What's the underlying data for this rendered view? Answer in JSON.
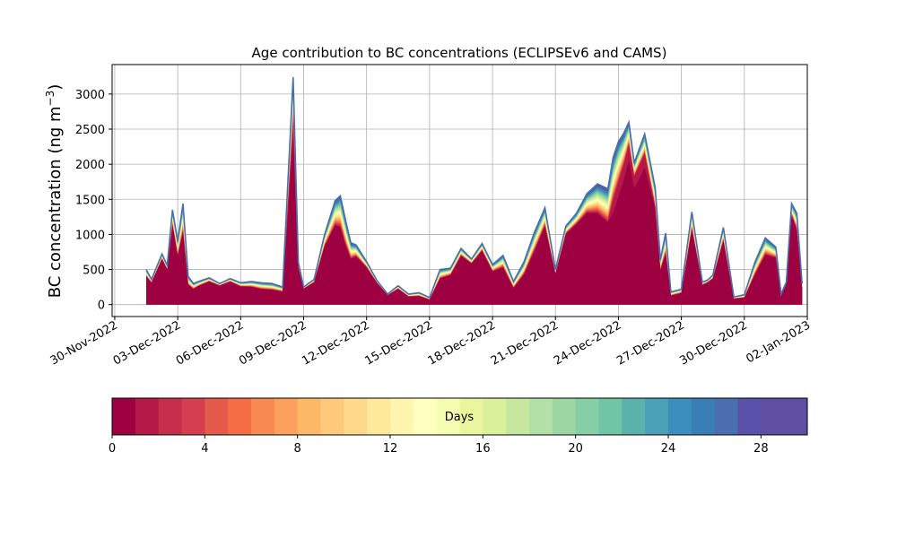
{
  "chart_data": {
    "type": "area",
    "title": "Age contribution to BC concentrations (ECLIPSEv6 and CAMS)",
    "ylabel_main": "BC concentration (ng m",
    "ylabel_sup": "−3",
    "ylabel_close": ")",
    "xlabel": "",
    "stacked": true,
    "grid": true,
    "ylim": [
      -170,
      3420
    ],
    "xlim": [
      "2022-11-29T21:00",
      "2023-01-02T00:00"
    ],
    "y_ticks": [
      0,
      500,
      1000,
      1500,
      2000,
      2500,
      3000
    ],
    "x_ticks": [
      "2022-11-30",
      "2022-12-03",
      "2022-12-06",
      "2022-12-09",
      "2022-12-12",
      "2022-12-15",
      "2022-12-18",
      "2022-12-21",
      "2022-12-24",
      "2022-12-27",
      "2022-12-30",
      "2023-01-02"
    ],
    "x_tick_labels": [
      "30-Nov-2022",
      "03-Dec-2022",
      "06-Dec-2022",
      "09-Dec-2022",
      "12-Dec-2022",
      "15-Dec-2022",
      "18-Dec-2022",
      "21-Dec-2022",
      "24-Dec-2022",
      "27-Dec-2022",
      "30-Dec-2022",
      "02-Jan-2023"
    ],
    "x": [
      "2022-12-01T12:00",
      "2022-12-01T18:00",
      "2022-12-02T06:00",
      "2022-12-02T12:00",
      "2022-12-02T18:00",
      "2022-12-03T00:00",
      "2022-12-03T06:00",
      "2022-12-03T12:00",
      "2022-12-03T18:00",
      "2022-12-04T00:00",
      "2022-12-04T12:00",
      "2022-12-05T00:00",
      "2022-12-05T12:00",
      "2022-12-06T00:00",
      "2022-12-06T12:00",
      "2022-12-07T00:00",
      "2022-12-07T12:00",
      "2022-12-08T00:00",
      "2022-12-08T12:00",
      "2022-12-08T18:00",
      "2022-12-09T00:00",
      "2022-12-09T12:00",
      "2022-12-10T00:00",
      "2022-12-10T12:00",
      "2022-12-10T18:00",
      "2022-12-11T00:00",
      "2022-12-11T06:00",
      "2022-12-11T12:00",
      "2022-12-12T00:00",
      "2022-12-12T12:00",
      "2022-12-13T00:00",
      "2022-12-13T12:00",
      "2022-12-14T00:00",
      "2022-12-14T12:00",
      "2022-12-15T00:00",
      "2022-12-15T12:00",
      "2022-12-16T00:00",
      "2022-12-16T12:00",
      "2022-12-17T00:00",
      "2022-12-17T12:00",
      "2022-12-18T00:00",
      "2022-12-18T12:00",
      "2022-12-19T00:00",
      "2022-12-19T12:00",
      "2022-12-20T00:00",
      "2022-12-20T12:00",
      "2022-12-21T00:00",
      "2022-12-21T12:00",
      "2022-12-22T00:00",
      "2022-12-22T12:00",
      "2022-12-23T00:00",
      "2022-12-23T12:00",
      "2022-12-23T18:00",
      "2022-12-24T00:00",
      "2022-12-24T06:00",
      "2022-12-24T12:00",
      "2022-12-24T18:00",
      "2022-12-25T06:00",
      "2022-12-25T18:00",
      "2022-12-26T00:00",
      "2022-12-26T06:00",
      "2022-12-26T12:00",
      "2022-12-27T00:00",
      "2022-12-27T12:00",
      "2022-12-28T00:00",
      "2022-12-28T06:00",
      "2022-12-28T12:00",
      "2022-12-29T00:00",
      "2022-12-29T12:00",
      "2022-12-30T00:00",
      "2022-12-30T12:00",
      "2022-12-31T00:00",
      "2022-12-31T12:00",
      "2022-12-31T18:00",
      "2023-01-01T00:00",
      "2023-01-01T06:00",
      "2023-01-01T12:00",
      "2023-01-01T18:00"
    ],
    "total": [
      500,
      360,
      720,
      560,
      1350,
      900,
      1440,
      400,
      300,
      330,
      380,
      300,
      370,
      310,
      330,
      310,
      300,
      250,
      3240,
      600,
      250,
      360,
      1000,
      1480,
      1550,
      1200,
      880,
      850,
      610,
      340,
      150,
      270,
      150,
      170,
      100,
      500,
      520,
      800,
      650,
      870,
      570,
      700,
      330,
      610,
      1030,
      1380,
      500,
      1120,
      1300,
      1580,
      1720,
      1650,
      2100,
      2320,
      2440,
      2600,
      2020,
      2430,
      1670,
      640,
      1020,
      180,
      220,
      1320,
      320,
      350,
      420,
      1100,
      110,
      140,
      600,
      950,
      820,
      150,
      320,
      1440,
      1300,
      300
    ],
    "series_colors": [
      "#9e0142",
      "#b41947",
      "#c62f4b",
      "#d53e4f",
      "#e45a4b",
      "#f46d43",
      "#f88950",
      "#fca15d",
      "#fdb868",
      "#fec97a",
      "#fed98b",
      "#fee89a",
      "#fff5ad",
      "#ffffbf",
      "#f7fcb3",
      "#eaf69e",
      "#dbf09a",
      "#c8e89f",
      "#b3e0a6",
      "#9dd6a3",
      "#86cfa5",
      "#70c5a4",
      "#5bb2aa",
      "#4aa0b4",
      "#3c8fbc",
      "#3a7eb8",
      "#4a6eb0",
      "#5850a9",
      "#5e4fa2"
    ],
    "colorbar": {
      "label": "Days",
      "min": 0,
      "max": 30,
      "ticks": [
        0,
        4,
        8,
        12,
        16,
        20,
        24,
        28
      ]
    }
  }
}
